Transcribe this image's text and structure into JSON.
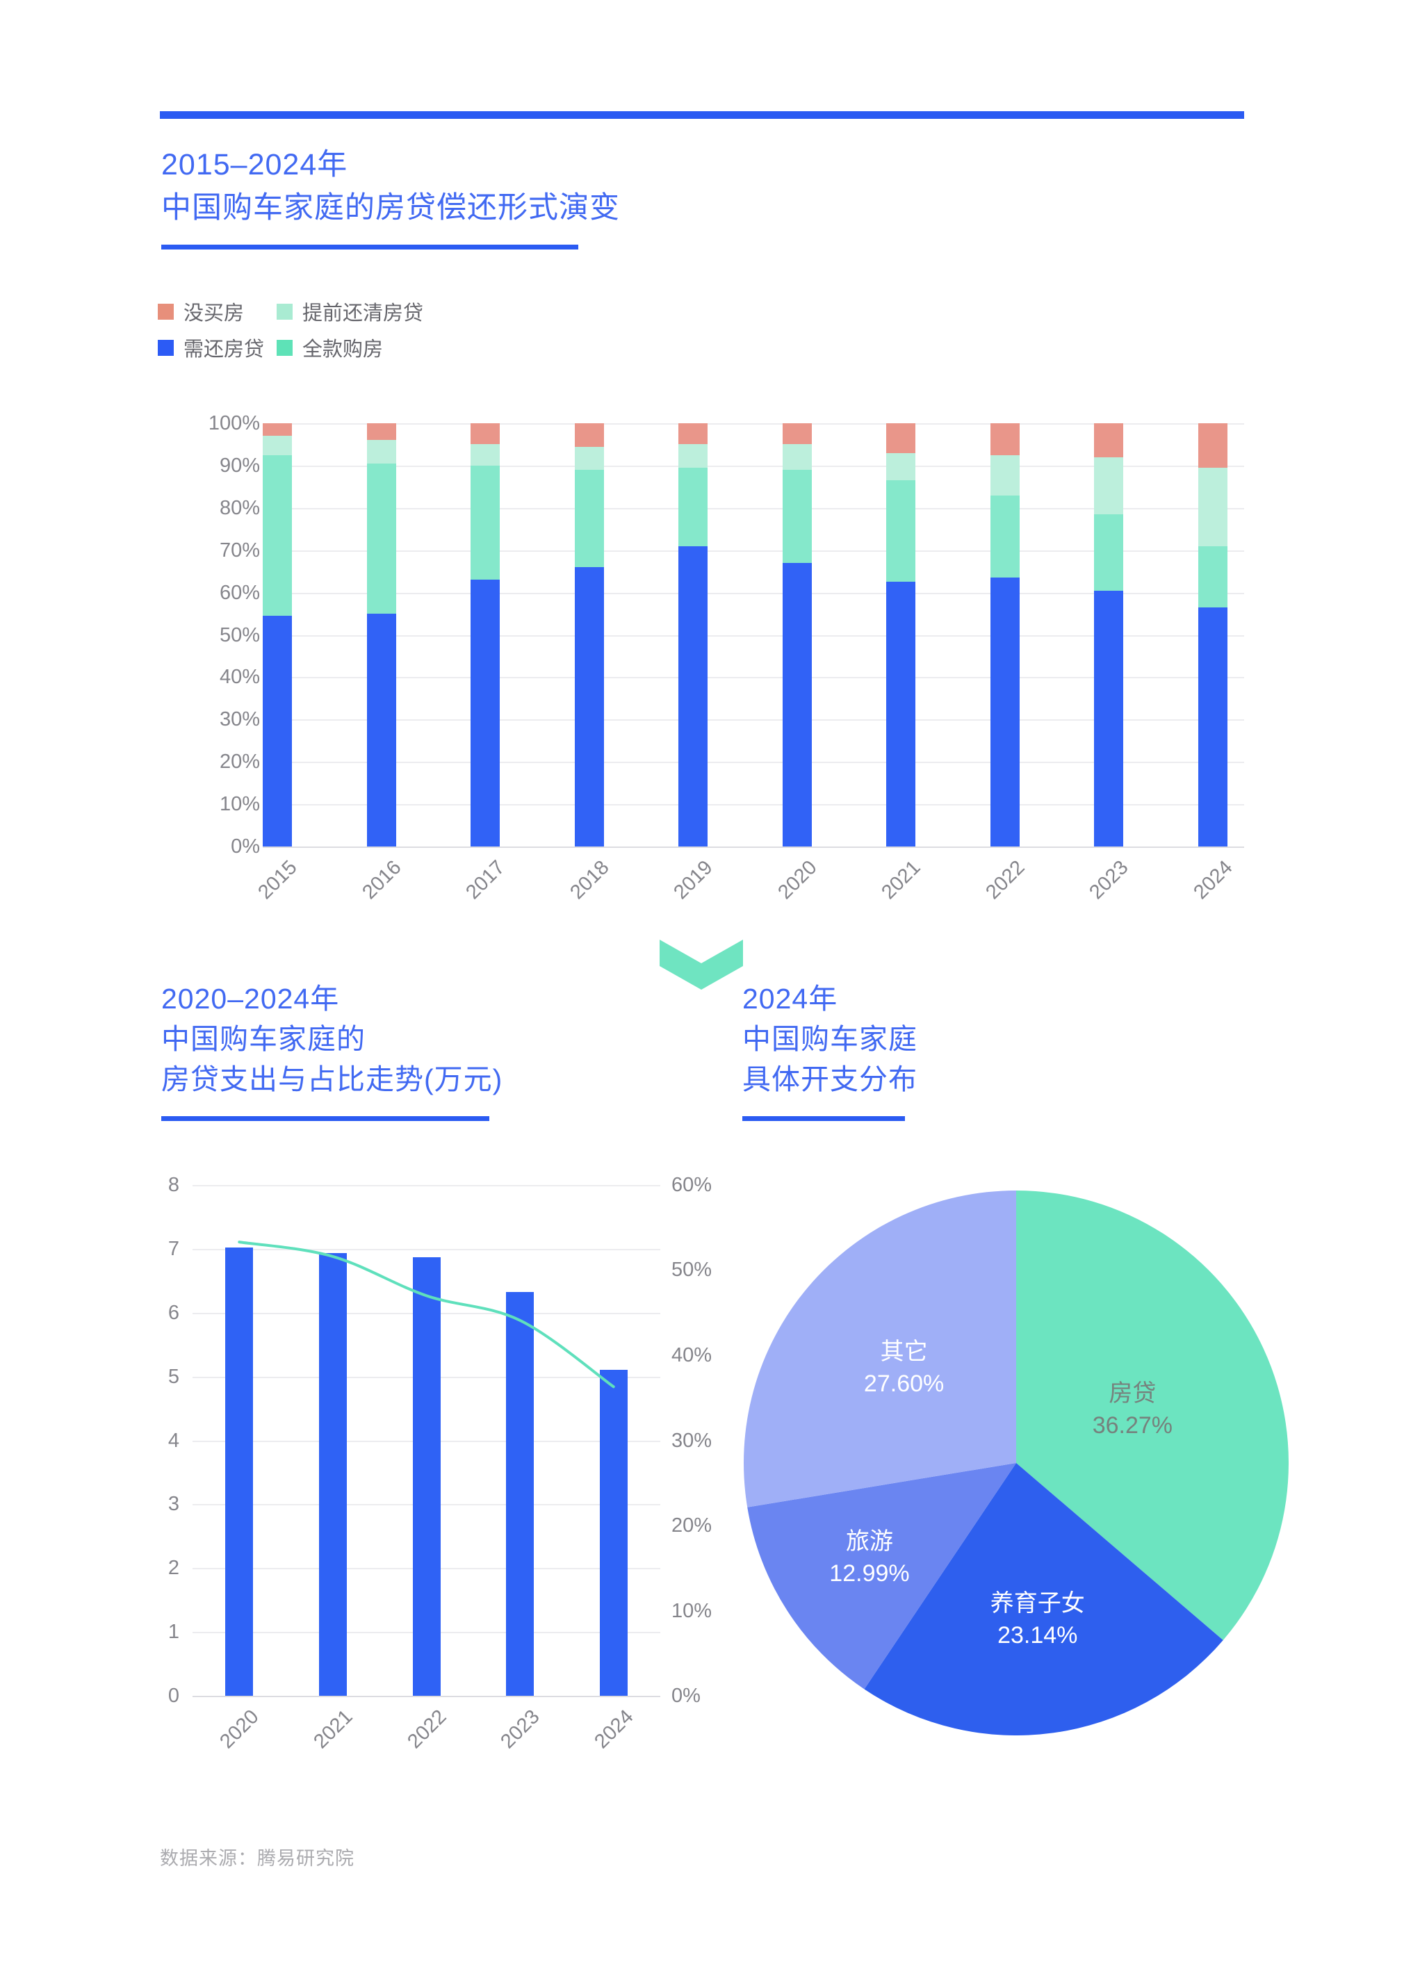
{
  "page": {
    "accent_color": "#2B5BF2",
    "background": "#FFFFFF"
  },
  "section1": {
    "title_lines": [
      "2015–2024年",
      "中国购车家庭的房贷偿还形式演变"
    ],
    "legend": [
      {
        "label": "没买房",
        "color": "#E78F7B"
      },
      {
        "label": "提前还清房贷",
        "color": "#A9EBD2"
      },
      {
        "label": "需还房贷",
        "color": "#2C5BF5"
      },
      {
        "label": "全款购房",
        "color": "#5EE2B7"
      }
    ]
  },
  "section2": {
    "left_title_lines": [
      "2020–2024年",
      "中国购车家庭的",
      "房贷支出与占比走势(万元)"
    ],
    "right_title_lines": [
      "2024年",
      "中国购车家庭",
      "具体开支分布"
    ]
  },
  "footer": {
    "source": "数据来源：腾易研究院"
  },
  "chart_data": [
    {
      "id": "mortgage-repayment-evolution",
      "type": "bar",
      "stacked": true,
      "title": "2015–2024年中国购车家庭的房贷偿还形式演变",
      "categories": [
        "2015",
        "2016",
        "2017",
        "2018",
        "2019",
        "2020",
        "2021",
        "2022",
        "2023",
        "2024"
      ],
      "series": [
        {
          "name": "需还房贷",
          "color": "#3162F6",
          "values": [
            54.5,
            55,
            63,
            66,
            71,
            67,
            62.5,
            63.5,
            60.5,
            56.5
          ]
        },
        {
          "name": "全款购房",
          "color": "#85E8CB",
          "values": [
            38,
            35.5,
            27,
            23,
            18.5,
            22,
            24,
            19.5,
            18,
            14.5
          ]
        },
        {
          "name": "提前还清房贷",
          "color": "#BCEFDC",
          "values": [
            4.5,
            5.5,
            5,
            5.5,
            5.5,
            6,
            6.5,
            9.5,
            13.5,
            18.5
          ]
        },
        {
          "name": "没买房",
          "color": "#E9968A",
          "values": [
            3,
            4,
            5,
            5.5,
            5,
            5,
            7,
            7.5,
            8,
            10.5
          ]
        }
      ],
      "ylim": [
        0,
        100
      ],
      "y_ticks": [
        "100%",
        "90%",
        "80%",
        "70%",
        "60%",
        "50%",
        "40%",
        "30%",
        "20%",
        "10%",
        "0%"
      ],
      "grid": true,
      "legend_position": "top-left",
      "x_label_rotation_deg": -45
    },
    {
      "id": "mortgage-spend-and-share-trend",
      "type": "bar",
      "combo": "bar+line",
      "title": "2020–2024年中国购车家庭的房贷支出与占比走势(万元)",
      "categories": [
        "2020",
        "2021",
        "2022",
        "2023",
        "2024"
      ],
      "bar_series": {
        "name": "房贷支出(万元)",
        "color": "#2F62F5",
        "axis": "left",
        "values": [
          7.02,
          6.93,
          6.87,
          6.32,
          5.1
        ]
      },
      "line_series": {
        "name": "房贷支出占比",
        "color": "#5FE0BC",
        "axis": "right",
        "values": [
          53.3,
          51.6,
          47.0,
          44.1,
          36.3
        ]
      },
      "left_ylim": [
        0,
        8
      ],
      "right_ylim": [
        0,
        60
      ],
      "left_ticks": [
        "8",
        "7",
        "6",
        "5",
        "4",
        "3",
        "2",
        "1",
        "0"
      ],
      "right_ticks": [
        "60%",
        "50%",
        "40%",
        "30%",
        "20%",
        "10%",
        "0%"
      ],
      "grid": true,
      "x_label_rotation_deg": -45
    },
    {
      "id": "expense-distribution-2024",
      "type": "pie",
      "title": "2024年中国购车家庭具体开支分布",
      "start_angle_deg": 0,
      "clockwise": true,
      "slices": [
        {
          "label": "房贷",
          "value": 36.27,
          "display": "36.27%",
          "color": "#6CE4C0",
          "text_color": "#76827D",
          "label_r": 0.47
        },
        {
          "label": "养育子女",
          "value": 23.14,
          "display": "23.14%",
          "color": "#2E5FEE",
          "text_color": "#FFFFFF",
          "label_r": 0.58
        },
        {
          "label": "旅游",
          "value": 12.99,
          "display": "12.99%",
          "color": "#6A85F1",
          "text_color": "#FFFFFF",
          "label_r": 0.64
        },
        {
          "label": "其它",
          "value": 27.6,
          "display": "27.60%",
          "color": "#9FAFF7",
          "text_color": "#FFFFFF",
          "label_r": 0.54
        }
      ]
    }
  ]
}
